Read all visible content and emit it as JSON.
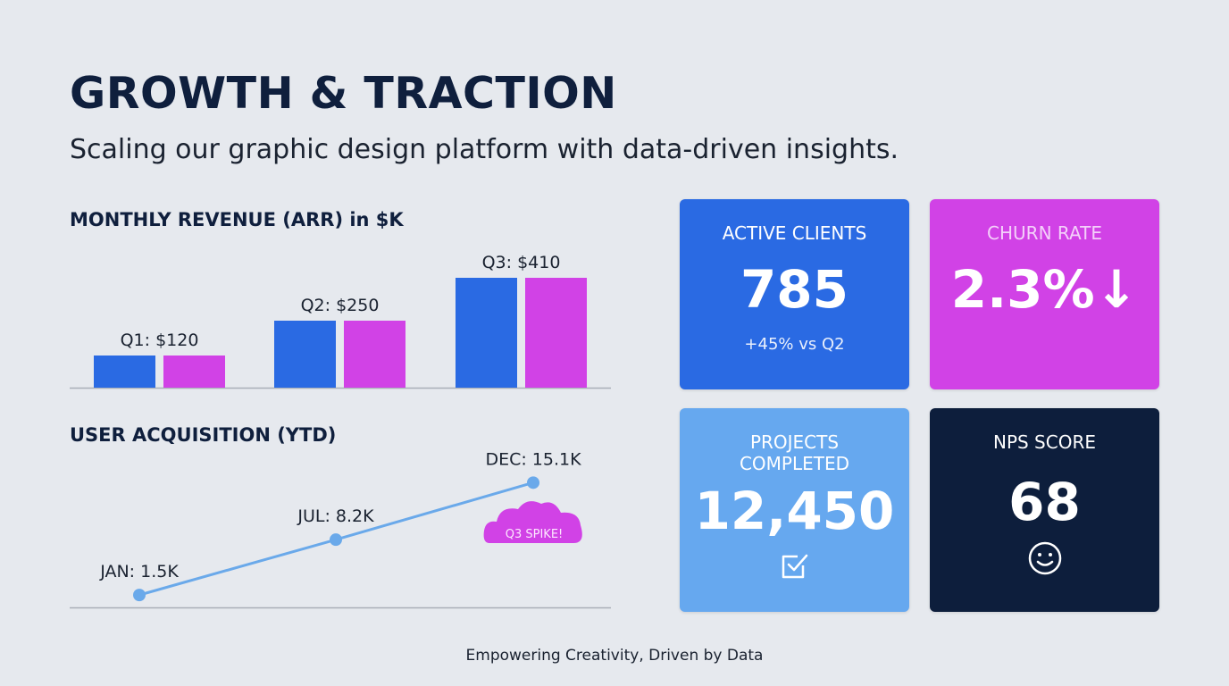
{
  "title": "GROWTH & TRACTION",
  "subtitle": "Scaling our graphic design platform with data-driven insights.",
  "footer": "Empowering Creativity, Driven by Data",
  "colors": {
    "blue": "#2a6ae3",
    "magenta": "#d142e6",
    "light_blue": "#66a8ef",
    "navy": "#0d1e3c",
    "line": "#6aa9ea"
  },
  "chart_data": [
    {
      "type": "bar",
      "title": "MONTHLY REVENUE (ARR) in $K",
      "categories": [
        "Q1",
        "Q2",
        "Q3"
      ],
      "data_labels": [
        "Q1: $120",
        "Q2: $250",
        "Q3: $410"
      ],
      "series": [
        {
          "values": [
            120,
            250,
            410
          ],
          "color": "#2a6ae3"
        },
        {
          "values": [
            120,
            250,
            410
          ],
          "color": "#d142e6"
        }
      ],
      "ylim": [
        0,
        450
      ],
      "grid": false
    },
    {
      "type": "line",
      "title": "USER ACQUISITION (YTD)",
      "categories": [
        "JAN",
        "JUL",
        "DEC"
      ],
      "values": [
        1.5,
        8.2,
        15.1
      ],
      "unit": "K",
      "data_labels": [
        "JAN: 1.5K",
        "JUL: 8.2K",
        "DEC: 15.1K"
      ],
      "annotation": "Q3 SPIKE!",
      "ylim": [
        0,
        16
      ],
      "grid": false,
      "color": "#6aa9ea"
    }
  ],
  "cards": [
    {
      "label": "ACTIVE CLIENTS",
      "value": "785",
      "sub": "+45% vs Q2"
    },
    {
      "label": "CHURN RATE",
      "value": "2.3%↓",
      "icon": "arrow-down"
    },
    {
      "label": "PROJECTS COMPLETED",
      "value": "12,450",
      "icon": "checkbox-icon"
    },
    {
      "label": "NPS SCORE",
      "value": "68",
      "icon": "smiley-icon"
    }
  ]
}
